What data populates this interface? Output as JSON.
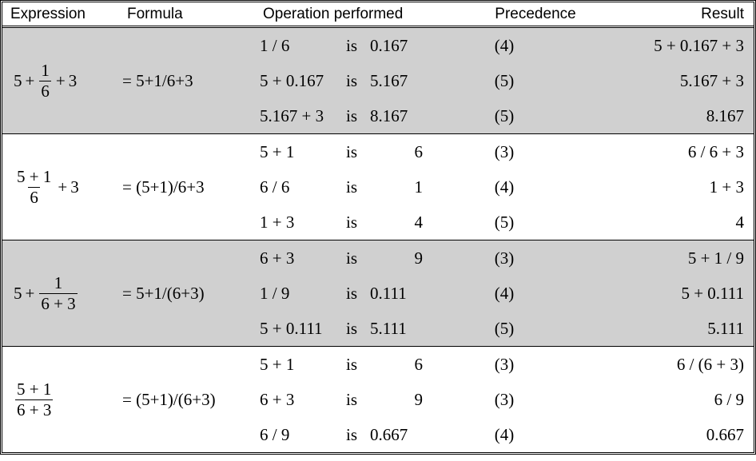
{
  "headers": {
    "expression": "Expression",
    "formula": "Formula",
    "operation": "Operation performed",
    "precedence": "Precedence",
    "result": "Result"
  },
  "groups": [
    {
      "shaded": true,
      "expr": {
        "pre": "5",
        "num": "1",
        "den": "6",
        "post": "3"
      },
      "exprType": "a_plus_frac_plus_b",
      "formula": "= 5+1/6+3",
      "rows": [
        {
          "opL": "1 / 6",
          "is": "is",
          "opR": "0.167",
          "opRWide": true,
          "prec": "(4)",
          "res": "5 + 0.167 + 3"
        },
        {
          "opL": "5 + 0.167",
          "is": "is",
          "opR": "5.167",
          "opRWide": true,
          "prec": "(5)",
          "res": "5.167 + 3"
        },
        {
          "opL": "5.167 + 3",
          "is": "is",
          "opR": "8.167",
          "opRWide": true,
          "prec": "(5)",
          "res": "8.167"
        }
      ]
    },
    {
      "shaded": false,
      "expr": {
        "num": "5 + 1",
        "den": "6",
        "post": "3"
      },
      "exprType": "frac_plus_b",
      "formula": "= (5+1)/6+3",
      "rows": [
        {
          "opL": "5 + 1",
          "is": "is",
          "opR": "6",
          "prec": "(3)",
          "res": "6 / 6 + 3"
        },
        {
          "opL": "6 / 6",
          "is": "is",
          "opR": "1",
          "prec": "(4)",
          "res": "1 + 3"
        },
        {
          "opL": "1 + 3",
          "is": "is",
          "opR": "4",
          "prec": "(5)",
          "res": "4"
        }
      ]
    },
    {
      "shaded": true,
      "expr": {
        "pre": "5",
        "num": "1",
        "den": "6 + 3"
      },
      "exprType": "a_plus_frac",
      "formula": "= 5+1/(6+3)",
      "rows": [
        {
          "opL": "6 + 3",
          "is": "is",
          "opR": "9",
          "prec": "(3)",
          "res": "5 + 1 / 9"
        },
        {
          "opL": "1 / 9",
          "is": "is",
          "opR": "0.111",
          "opRWide": true,
          "prec": "(4)",
          "res": "5 + 0.111"
        },
        {
          "opL": "5 + 0.111",
          "is": "is",
          "opR": "5.111",
          "opRWide": true,
          "prec": "(5)",
          "res": "5.111"
        }
      ]
    },
    {
      "shaded": false,
      "expr": {
        "num": "5 + 1",
        "den": "6 + 3"
      },
      "exprType": "frac_only",
      "formula": "= (5+1)/(6+3)",
      "rows": [
        {
          "opL": "5 + 1",
          "is": "is",
          "opR": "6",
          "prec": "(3)",
          "res": "6 / (6 + 3)"
        },
        {
          "opL": "6 + 3",
          "is": "is",
          "opR": "9",
          "prec": "(3)",
          "res": "6 / 9"
        },
        {
          "opL": "6 / 9",
          "is": "is",
          "opR": "0.667",
          "opRWide": true,
          "prec": "(4)",
          "res": "0.667"
        }
      ]
    }
  ]
}
